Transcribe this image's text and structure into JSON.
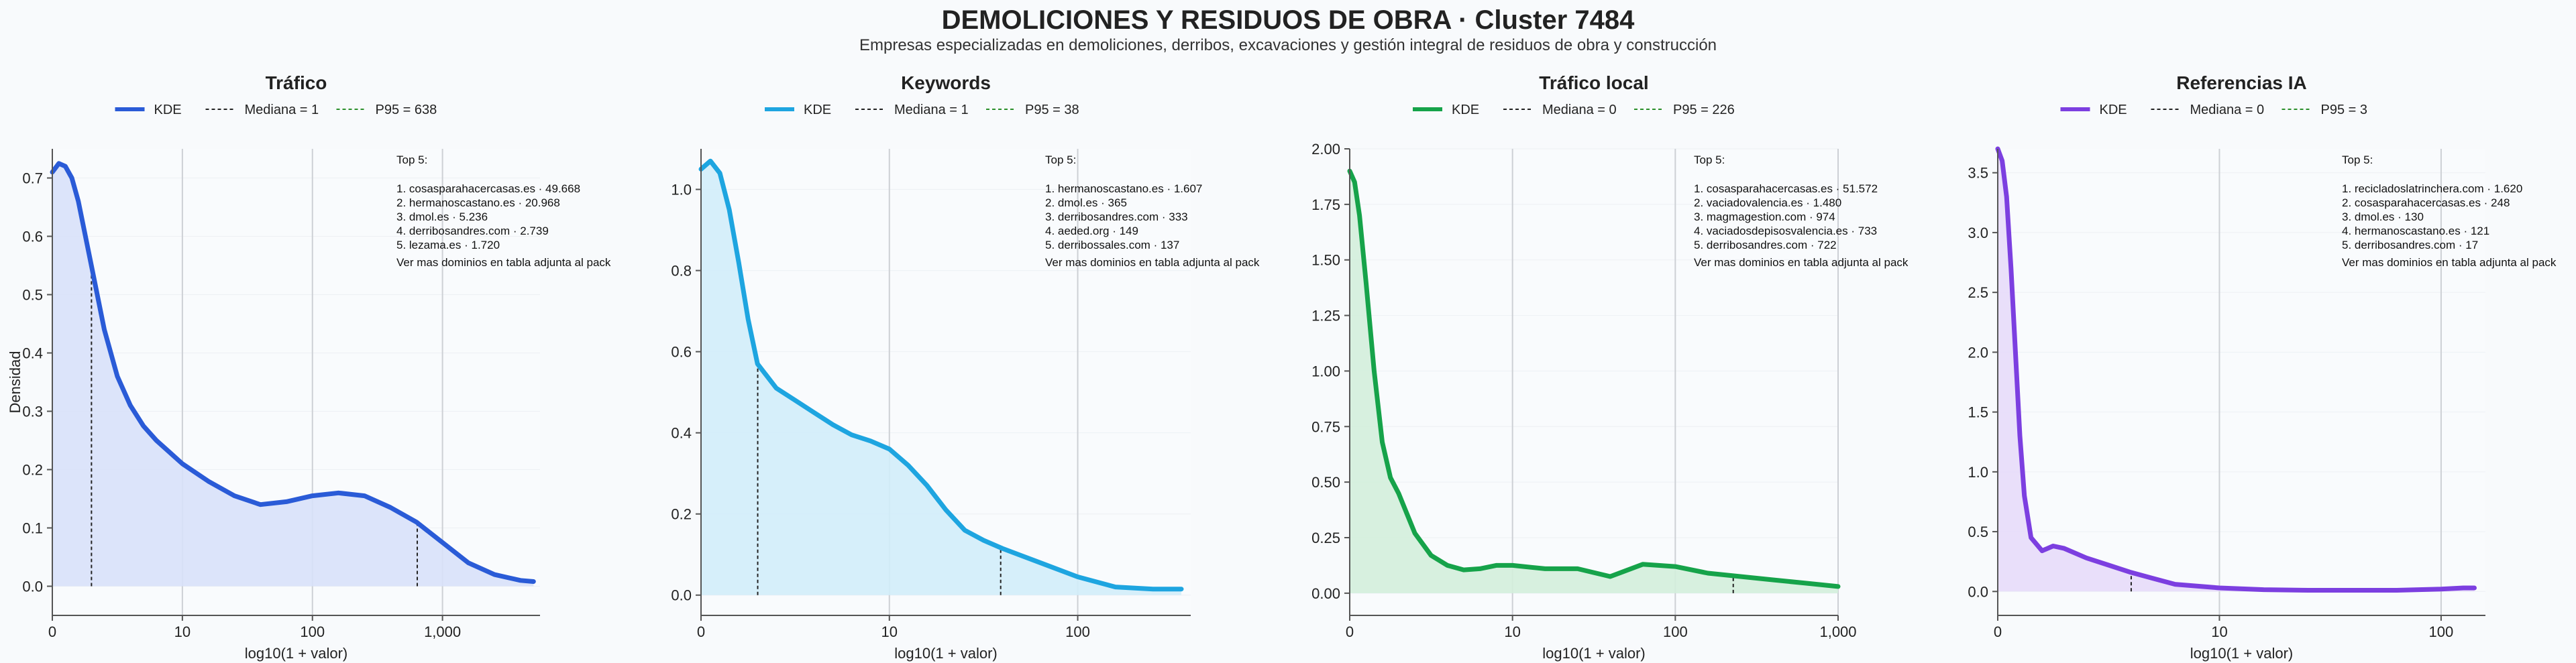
{
  "header": {
    "title": "DEMOLICIONES Y RESIDUOS DE OBRA · Cluster 7484",
    "subtitle": "Empresas especializadas en demoliciones, derribos, excavaciones y gestión integral de residuos de obra y construcción"
  },
  "shared": {
    "ylabel": "Densidad",
    "xlabel": "log10(1 + valor)",
    "legend_kde": "KDE",
    "top_title": "Top 5:",
    "top_footer": "Ver mas dominios en tabla adjunta al pack",
    "median_color": "#222222",
    "p95_color": "#2a8f2a"
  },
  "chart_data": [
    {
      "type": "area",
      "title": "Tráfico",
      "color": "#2a5bd7",
      "fill": "#d8e1fa",
      "legend": [
        "KDE",
        "Mediana = 1",
        "P95 = 638"
      ],
      "xlabel": "log10(1 + valor)",
      "ylabel": "Densidad",
      "xlim": [
        0,
        3.75
      ],
      "ylim": [
        -0.05,
        0.75
      ],
      "x_ticks": [
        0,
        1,
        2,
        3
      ],
      "x_tick_labels": [
        "0",
        "10",
        "100",
        "1,000"
      ],
      "y_ticks": [
        0,
        0.1,
        0.2,
        0.3,
        0.4,
        0.5,
        0.6,
        0.7
      ],
      "y_tick_labels": [
        "0.0",
        "0.1",
        "0.2",
        "0.3",
        "0.4",
        "0.5",
        "0.6",
        "0.7"
      ],
      "median": 0.301,
      "p95": 2.806,
      "kde_x": [
        0,
        0.05,
        0.1,
        0.15,
        0.2,
        0.3,
        0.4,
        0.5,
        0.6,
        0.7,
        0.8,
        0.9,
        1.0,
        1.2,
        1.4,
        1.6,
        1.8,
        2.0,
        2.2,
        2.4,
        2.6,
        2.8,
        3.0,
        3.2,
        3.4,
        3.6,
        3.7
      ],
      "kde_y": [
        0.71,
        0.725,
        0.72,
        0.7,
        0.66,
        0.55,
        0.44,
        0.36,
        0.31,
        0.275,
        0.25,
        0.23,
        0.21,
        0.18,
        0.155,
        0.14,
        0.145,
        0.155,
        0.16,
        0.155,
        0.135,
        0.11,
        0.075,
        0.04,
        0.02,
        0.01,
        0.008
      ],
      "top5": [
        "1. cosasparahacercasas.es · 49.668",
        "2. hermanoscastano.es · 20.968",
        "3. dmol.es · 5.236",
        "4. derribosandres.com · 2.739",
        "5. lezama.es · 1.720"
      ]
    },
    {
      "type": "area",
      "title": "Keywords",
      "color": "#1ea5e0",
      "fill": "#d2edfa",
      "legend": [
        "KDE",
        "Mediana = 1",
        "P95 = 38"
      ],
      "xlabel": "log10(1 + valor)",
      "ylabel": "",
      "xlim": [
        0,
        2.6
      ],
      "ylim": [
        -0.05,
        1.1
      ],
      "x_ticks": [
        0,
        1,
        2
      ],
      "x_tick_labels": [
        "0",
        "10",
        "100"
      ],
      "y_ticks": [
        0,
        0.2,
        0.4,
        0.6,
        0.8,
        1.0
      ],
      "y_tick_labels": [
        "0.0",
        "0.2",
        "0.4",
        "0.6",
        "0.8",
        "1.0"
      ],
      "median": 0.301,
      "p95": 1.591,
      "kde_x": [
        0,
        0.05,
        0.1,
        0.15,
        0.2,
        0.25,
        0.3,
        0.4,
        0.5,
        0.6,
        0.7,
        0.8,
        0.9,
        1.0,
        1.1,
        1.2,
        1.3,
        1.4,
        1.5,
        1.6,
        1.8,
        2.0,
        2.2,
        2.4,
        2.55
      ],
      "kde_y": [
        1.05,
        1.07,
        1.04,
        0.95,
        0.82,
        0.68,
        0.57,
        0.51,
        0.48,
        0.45,
        0.42,
        0.395,
        0.38,
        0.36,
        0.32,
        0.27,
        0.21,
        0.16,
        0.135,
        0.115,
        0.08,
        0.045,
        0.02,
        0.015,
        0.015
      ],
      "top5": [
        "1. hermanoscastano.es · 1.607",
        "2. dmol.es · 365",
        "3. derribosandres.com · 333",
        "4. aeded.org · 149",
        "5. derribossales.com · 137"
      ]
    },
    {
      "type": "area",
      "title": "Tráfico local",
      "color": "#16a34a",
      "fill": "#d3eedb",
      "legend": [
        "KDE",
        "Mediana = 0",
        "P95 = 226"
      ],
      "xlabel": "log10(1 + valor)",
      "ylabel": "",
      "xlim": [
        0,
        3.0
      ],
      "ylim": [
        -0.1,
        2.0
      ],
      "x_ticks": [
        0,
        1,
        2,
        3
      ],
      "x_tick_labels": [
        "0",
        "10",
        "100",
        "1,000"
      ],
      "y_ticks": [
        0,
        0.25,
        0.5,
        0.75,
        1.0,
        1.25,
        1.5,
        1.75,
        2.0
      ],
      "y_tick_labels": [
        "0.00",
        "0.25",
        "0.50",
        "0.75",
        "1.00",
        "1.25",
        "1.50",
        "1.75",
        "2.00"
      ],
      "median": 0,
      "p95": 2.356,
      "kde_x": [
        0,
        0.03,
        0.06,
        0.1,
        0.15,
        0.2,
        0.25,
        0.3,
        0.35,
        0.4,
        0.5,
        0.6,
        0.7,
        0.8,
        0.9,
        1.0,
        1.2,
        1.4,
        1.6,
        1.8,
        2.0,
        2.2,
        2.4,
        2.6,
        2.8,
        3.0
      ],
      "kde_y": [
        1.9,
        1.85,
        1.7,
        1.4,
        1.0,
        0.68,
        0.52,
        0.45,
        0.36,
        0.27,
        0.17,
        0.125,
        0.105,
        0.11,
        0.125,
        0.125,
        0.11,
        0.11,
        0.075,
        0.13,
        0.12,
        0.09,
        0.075,
        0.06,
        0.045,
        0.03
      ],
      "top5": [
        "1. cosasparahacercasas.es · 51.572",
        "2. vaciadovalencia.es · 1.480",
        "3. magmagestion.com · 974",
        "4. vaciadosdepisosvalencia.es · 733",
        "5. derribosandres.com · 722"
      ]
    },
    {
      "type": "area",
      "title": "Referencias IA",
      "color": "#7c3fe0",
      "fill": "#e7dbfa",
      "legend": [
        "KDE",
        "Mediana = 0",
        "P95 = 3"
      ],
      "xlabel": "log10(1 + valor)",
      "ylabel": "",
      "xlim": [
        0,
        2.2
      ],
      "ylim": [
        -0.2,
        3.7
      ],
      "x_ticks": [
        0,
        1,
        2
      ],
      "x_tick_labels": [
        "0",
        "10",
        "100"
      ],
      "y_ticks": [
        0,
        0.5,
        1.0,
        1.5,
        2.0,
        2.5,
        3.0,
        3.5
      ],
      "y_tick_labels": [
        "0.0",
        "0.5",
        "1.0",
        "1.5",
        "2.0",
        "2.5",
        "3.0",
        "3.5"
      ],
      "median": 0,
      "p95": 0.602,
      "kde_x": [
        0,
        0.02,
        0.04,
        0.06,
        0.08,
        0.1,
        0.12,
        0.15,
        0.2,
        0.25,
        0.3,
        0.4,
        0.5,
        0.6,
        0.7,
        0.8,
        1.0,
        1.2,
        1.4,
        1.6,
        1.8,
        2.0,
        2.1,
        2.15
      ],
      "kde_y": [
        3.7,
        3.6,
        3.3,
        2.7,
        2.0,
        1.3,
        0.8,
        0.45,
        0.34,
        0.38,
        0.36,
        0.28,
        0.22,
        0.16,
        0.11,
        0.06,
        0.03,
        0.015,
        0.01,
        0.01,
        0.01,
        0.02,
        0.03,
        0.03
      ],
      "top5": [
        "1. recicladoslatrinchera.com · 1.620",
        "2. cosasparahacercasas.es · 248",
        "3. dmol.es · 130",
        "4. hermanoscastano.es · 121",
        "5. derribosandres.com · 17"
      ]
    }
  ]
}
